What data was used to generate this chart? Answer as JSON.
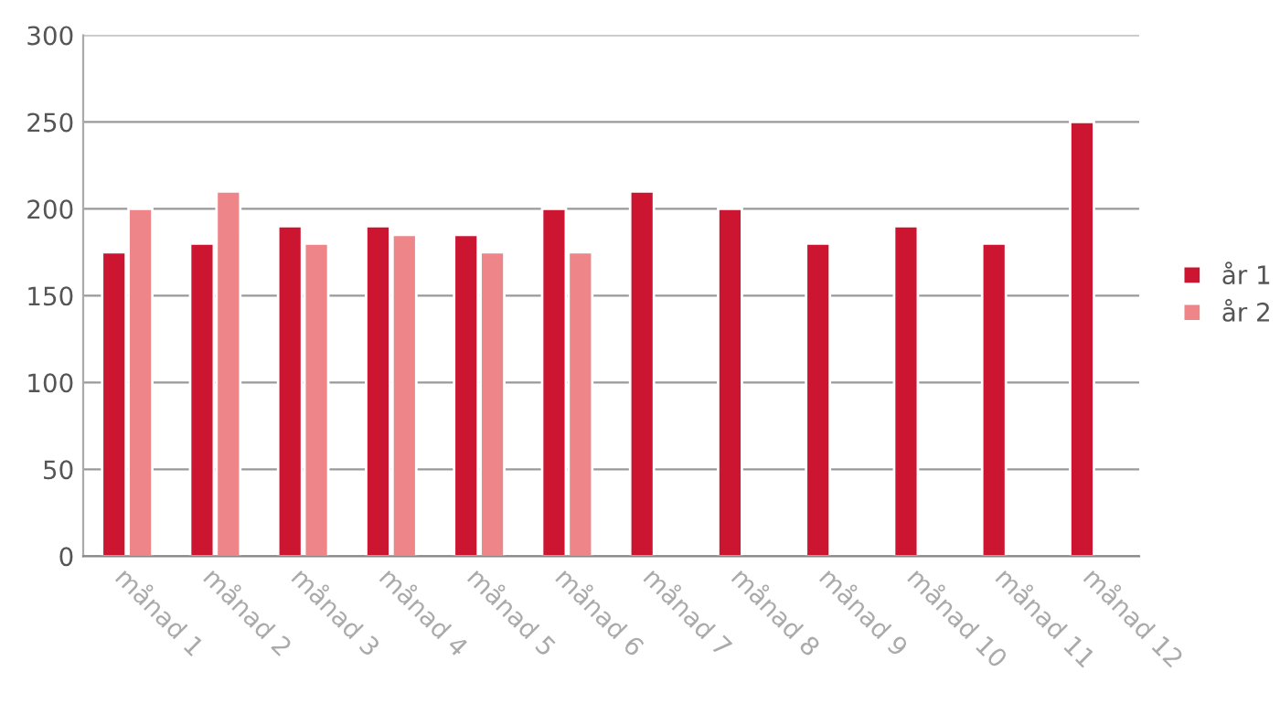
{
  "chart_data": {
    "type": "bar",
    "categories": [
      "månad 1",
      "månad 2",
      "månad 3",
      "månad 4",
      "månad 5",
      "månad 6",
      "månad 7",
      "månad 8",
      "månad 9",
      "månad 10",
      "månad 11",
      "månad 12"
    ],
    "series": [
      {
        "name": "år 1",
        "color": "#cc1531",
        "values": [
          175,
          180,
          190,
          190,
          185,
          200,
          210,
          200,
          180,
          190,
          180,
          250
        ]
      },
      {
        "name": "år 2",
        "color": "#ee8589",
        "values": [
          200,
          210,
          180,
          185,
          175,
          175,
          null,
          null,
          null,
          null,
          null,
          null
        ]
      }
    ],
    "ylim": [
      0,
      300
    ],
    "yticks": [
      0,
      50,
      100,
      150,
      200,
      250,
      300
    ],
    "grid": "y",
    "legend": "right"
  }
}
